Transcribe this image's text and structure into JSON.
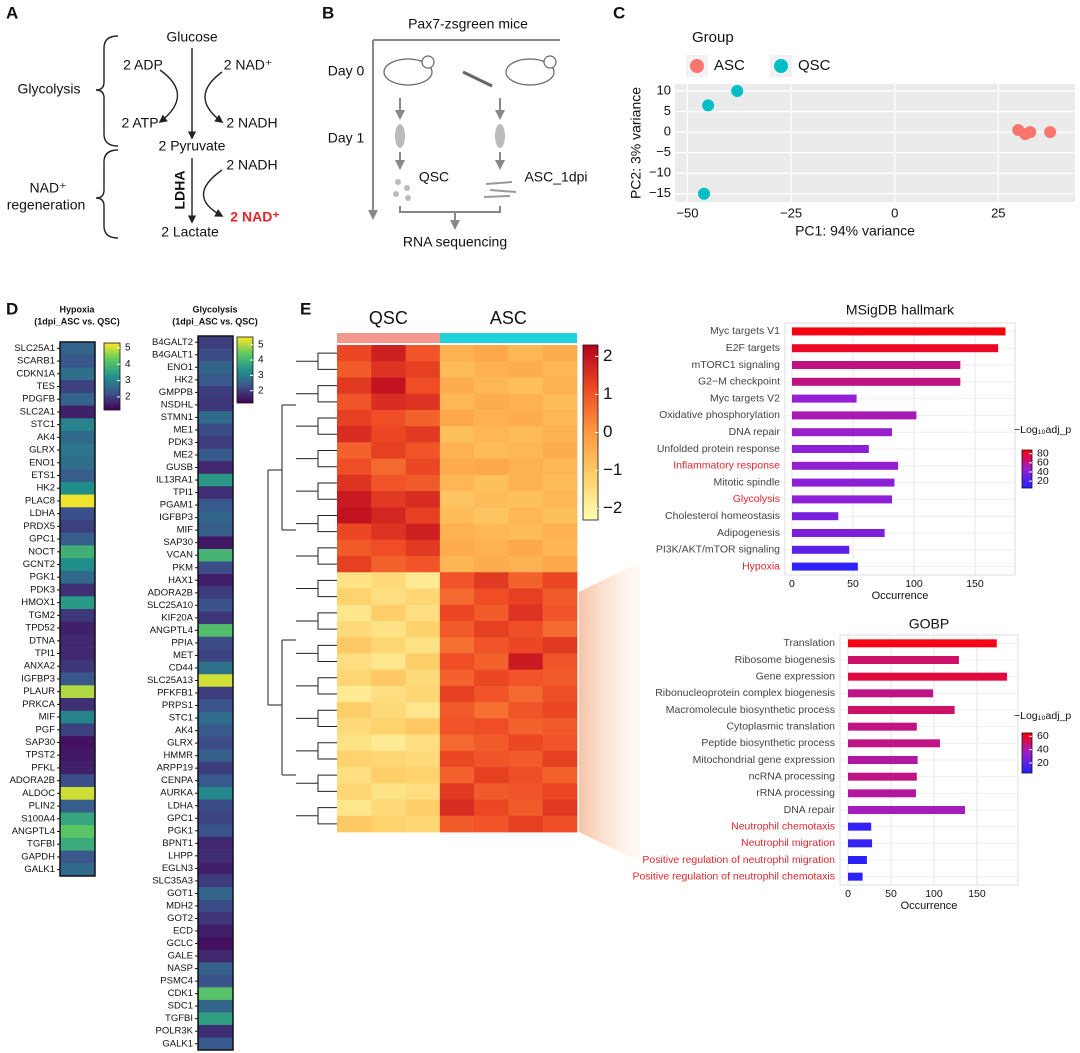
{
  "panel_labels": [
    "A",
    "B",
    "C",
    "D",
    "E"
  ],
  "panel_a": {
    "glucose": "Glucose",
    "adp": "2 ADP",
    "nad_in": "2 NAD⁺",
    "atp": "2 ATP",
    "nadh_out": "2 NADH",
    "pyruvate": "2 Pyruvate",
    "enzyme": "LDHA",
    "nadh_in": "2 NADH",
    "nad_out": "2 NAD⁺",
    "lactate": "2 Lactate",
    "glycolysis": "Glycolysis",
    "regeneration": [
      "NAD⁺",
      "regeneration"
    ]
  },
  "panel_b": {
    "title": "Pax7-zsgreen mice",
    "day0": "Day 0",
    "day1": "Day 1",
    "qsc": "QSC",
    "asc": "ASC_1dpi",
    "sequencing": "RNA sequencing"
  },
  "chart_data": [
    {
      "type": "scatter",
      "xlabel": "PC1: 94% variance",
      "ylabel": "PC2: 3% variance",
      "legend_title": "Group",
      "legend": "top",
      "series": [
        {
          "name": "ASC",
          "color": "#f8766d",
          "x": [
            29.8,
            31.5,
            32.7,
            37.5
          ],
          "y": [
            0.5,
            -0.5,
            0,
            0
          ]
        },
        {
          "name": "QSC",
          "color": "#00bfc4",
          "x": [
            -38,
            -45,
            -46
          ],
          "y": [
            10,
            6.5,
            -15
          ]
        }
      ],
      "xlim": [
        -53,
        43.5
      ],
      "ylim": [
        -17,
        11.7
      ],
      "xticks": [
        {
          "value": -50,
          "label": "−50"
        },
        {
          "value": -25,
          "label": "−25"
        },
        0,
        25
      ],
      "yticks": [
        10,
        5,
        0,
        {
          "value": -5,
          "label": "−5"
        },
        {
          "value": -10,
          "label": "−10"
        },
        {
          "value": -15,
          "label": "−15"
        }
      ],
      "grid": true
    },
    {
      "type": "heatmap",
      "title": "Hypoxia",
      "subtitle": "(1dpi_ASC vs. QSC)",
      "categories": [
        "SLC25A1",
        "SCARB1",
        "CDKN1A",
        "TES",
        "PDGFB",
        "SLC2A1",
        "STC1",
        "AK4",
        "GLRX",
        "ENO1",
        "ETS1",
        "HK2",
        "PLAC8",
        "LDHA",
        "PRDX5",
        "GPC1",
        "NOCT",
        "GCNT2",
        "PGK1",
        "PDK3",
        "HMOX1",
        "TGM2",
        "TPD52",
        "DTNA",
        "TPI1",
        "ANXA2",
        "IGFBP3",
        "PLAUR",
        "PRKCA",
        "MIF",
        "PGF",
        "SAP30",
        "TPST2",
        "PFKL",
        "ADORA2B",
        "ALDOC",
        "PLIN2",
        "S100A4",
        "ANGPTL4",
        "TGFBI",
        "GAPDH",
        "GALK1"
      ],
      "values": [
        2.5,
        2.3,
        2.7,
        2.0,
        2.5,
        1.6,
        3.0,
        2.6,
        2.8,
        2.7,
        2.4,
        3.2,
        5.2,
        2.2,
        2.0,
        2.4,
        3.8,
        3.2,
        2.6,
        1.8,
        3.4,
        1.9,
        1.6,
        1.7,
        1.7,
        1.9,
        2.3,
        4.8,
        1.8,
        3.0,
        2.0,
        1.4,
        1.5,
        1.6,
        2.2,
        5.0,
        2.4,
        3.6,
        4.2,
        3.7,
        2.3,
        2.6
      ],
      "colorbar": {
        "lim": [
          1.2,
          5.3
        ],
        "ticks": [
          2,
          3,
          4,
          5
        ],
        "colors": [
          "#440154",
          "#3b528b",
          "#21918c",
          "#5ec962",
          "#fde725"
        ]
      }
    },
    {
      "type": "heatmap",
      "title": "Glycolysis",
      "subtitle": "(1dpi_ASC vs. QSC)",
      "categories": [
        "B4GALT2",
        "B4GALT1",
        "ENO1",
        "HK2",
        "GMPPB",
        "NSDHL",
        "STMN1",
        "ME1",
        "PDK3",
        "ME2",
        "GUSB",
        "IL13RA1",
        "TPI1",
        "PGAM1",
        "IGFBP3",
        "MIF",
        "SAP30",
        "VCAN",
        "PKM",
        "HAX1",
        "ADORA2B",
        "SLC25A10",
        "KIF20A",
        "ANGPTL4",
        "PPIA",
        "MET",
        "CD44",
        "SLC25A13",
        "PFKFB1",
        "PRPS1",
        "STC1",
        "AK4",
        "GLRX",
        "HMMR",
        "ARPP19",
        "CENPA",
        "AURKA",
        "LDHA",
        "GPC1",
        "PGK1",
        "BPNT1",
        "LHPP",
        "EGLN3",
        "SLC35A3",
        "GOT1",
        "MDH2",
        "GOT2",
        "ECD",
        "GCLC",
        "GALE",
        "NASP",
        "PSMC4",
        "CDK1",
        "SDC1",
        "TGFBI",
        "POLR3K",
        "GALK1"
      ],
      "values": [
        2.0,
        2.2,
        2.6,
        2.4,
        2.0,
        1.9,
        2.7,
        2.2,
        2.0,
        2.4,
        1.7,
        3.5,
        1.8,
        2.4,
        2.6,
        2.5,
        1.5,
        4.0,
        2.2,
        1.6,
        2.0,
        2.3,
        1.9,
        4.2,
        2.2,
        2.1,
        2.8,
        5.2,
        2.0,
        2.3,
        2.7,
        2.4,
        2.2,
        2.5,
        2.0,
        2.4,
        3.2,
        2.2,
        2.1,
        2.3,
        1.7,
        1.8,
        1.6,
        2.0,
        2.6,
        2.2,
        1.9,
        1.6,
        1.4,
        1.7,
        2.5,
        2.3,
        4.3,
        2.6,
        3.6,
        1.8,
        2.4
      ],
      "colorbar": {
        "lim": [
          1.2,
          5.5
        ],
        "ticks": [
          2,
          3,
          4,
          5
        ],
        "colors": [
          "#440154",
          "#3b528b",
          "#21918c",
          "#5ec962",
          "#fde725"
        ]
      }
    },
    {
      "type": "heatmap",
      "series": [
        {
          "name": "QSC",
          "color": "#f4978e",
          "values": [
            [
              1.2,
              1.8,
              1.0
            ],
            [
              0.9,
              1.5,
              1.3
            ],
            [
              1.4,
              2.0,
              1.1
            ],
            [
              1.0,
              1.6,
              1.5
            ],
            [
              1.3,
              1.1,
              0.8
            ],
            [
              1.6,
              1.2,
              1.4
            ],
            [
              0.8,
              1.3,
              1.0
            ],
            [
              1.1,
              0.7,
              1.2
            ],
            [
              1.5,
              1.0,
              0.9
            ],
            [
              1.9,
              1.4,
              1.6
            ],
            [
              2.0,
              1.7,
              1.3
            ],
            [
              1.2,
              1.5,
              1.8
            ],
            [
              0.9,
              1.1,
              1.4
            ],
            [
              1.3,
              0.8,
              1.0
            ],
            [
              -1.6,
              -1.4,
              -1.8
            ],
            [
              -1.2,
              -1.5,
              -1.3
            ],
            [
              -1.7,
              -1.1,
              -1.5
            ],
            [
              -1.4,
              -1.6,
              -1.2
            ],
            [
              -1.0,
              -1.3,
              -1.6
            ],
            [
              -1.5,
              -1.7,
              -1.1
            ],
            [
              -1.3,
              -1.0,
              -1.4
            ],
            [
              -1.8,
              -1.5,
              -1.3
            ],
            [
              -1.1,
              -1.4,
              -1.7
            ],
            [
              -1.4,
              -1.2,
              -1.0
            ],
            [
              -1.6,
              -1.8,
              -1.5
            ],
            [
              -1.2,
              -1.3,
              -1.4
            ],
            [
              -1.5,
              -1.1,
              -1.2
            ],
            [
              -1.3,
              -1.6,
              -1.5
            ],
            [
              -1.7,
              -1.4,
              -1.1
            ],
            [
              -1.0,
              -1.2,
              -1.3
            ]
          ]
        },
        {
          "name": "ASC",
          "color": "#1fd3d8",
          "values": [
            [
              -0.5,
              -0.3,
              -0.6,
              -0.4
            ],
            [
              -0.7,
              -0.5,
              -0.4,
              -0.6
            ],
            [
              -0.4,
              -0.6,
              -0.8,
              -0.5
            ],
            [
              -0.6,
              -0.4,
              -0.5,
              -0.7
            ],
            [
              -0.3,
              -0.5,
              -0.4,
              -0.6
            ],
            [
              -0.8,
              -0.6,
              -0.7,
              -0.5
            ],
            [
              -0.5,
              -0.7,
              -0.6,
              -0.4
            ],
            [
              -0.4,
              -0.3,
              -0.5,
              -0.6
            ],
            [
              -0.6,
              -0.8,
              -0.5,
              -0.7
            ],
            [
              -0.9,
              -0.7,
              -0.8,
              -0.6
            ],
            [
              -0.7,
              -0.9,
              -0.6,
              -0.8
            ],
            [
              -0.5,
              -0.6,
              -0.7,
              -0.5
            ],
            [
              -0.4,
              -0.5,
              -0.3,
              -0.6
            ],
            [
              -0.6,
              -0.4,
              -0.5,
              -0.3
            ],
            [
              1.0,
              1.4,
              0.8,
              1.2
            ],
            [
              0.7,
              1.1,
              1.3,
              0.9
            ],
            [
              1.2,
              0.9,
              1.5,
              1.0
            ],
            [
              0.9,
              1.3,
              1.1,
              0.7
            ],
            [
              0.6,
              1.0,
              1.2,
              1.4
            ],
            [
              1.1,
              0.8,
              1.9,
              1.0
            ],
            [
              0.8,
              1.2,
              1.0,
              0.9
            ],
            [
              1.3,
              1.0,
              0.7,
              1.1
            ],
            [
              0.9,
              0.6,
              1.0,
              1.2
            ],
            [
              1.0,
              1.1,
              0.8,
              0.9
            ],
            [
              0.7,
              0.9,
              1.2,
              1.0
            ],
            [
              1.2,
              1.0,
              0.9,
              1.3
            ],
            [
              0.8,
              1.3,
              1.1,
              0.8
            ],
            [
              1.4,
              0.9,
              1.0,
              1.2
            ],
            [
              1.6,
              1.2,
              0.9,
              1.4
            ],
            [
              0.9,
              1.0,
              1.3,
              1.1
            ]
          ]
        }
      ],
      "colorbar": {
        "lim": [
          -2.3,
          2.3
        ],
        "ticks": [
          2,
          1,
          0,
          {
            "value": -1,
            "label": "−1"
          },
          {
            "value": -2,
            "label": "−2"
          }
        ],
        "colors": [
          "#ffffb2",
          "#fed06a",
          "#fd9a40",
          "#ee4a24",
          "#b4001e"
        ]
      }
    },
    {
      "type": "barh",
      "title": "MSigDB hallmark",
      "xlabel": "Occurrence",
      "categories": [
        "Myc targets V1",
        "E2F targets",
        "mTORC1 signaling",
        "G2−M checkpoint",
        "Myc targets V2",
        "Oxidative phosphorylation",
        "DNA repair",
        "Unfolded protein response",
        "Inflammatory response",
        "Mitotic spindle",
        "Glycolysis",
        "Cholesterol homeostasis",
        "Adipogenesis",
        "PI3K/AKT/mTOR  signaling",
        "Hypoxia"
      ],
      "values": [
        175,
        169,
        138,
        138,
        53,
        102,
        82,
        63,
        87,
        84,
        82,
        38,
        76,
        47,
        54
      ],
      "color_values": [
        85,
        80,
        62,
        62,
        45,
        52,
        47,
        42,
        44,
        42,
        42,
        35,
        36,
        25,
        10
      ],
      "label_colors": [
        "#444",
        "#444",
        "#444",
        "#444",
        "#444",
        "#444",
        "#444",
        "#444",
        "#e4262b",
        "#444",
        "#e4262b",
        "#444",
        "#444",
        "#444",
        "#e4262b"
      ],
      "xlim": [
        -5.7,
        182.8
      ],
      "xticks": [
        0,
        50,
        100,
        150
      ],
      "grid": true,
      "colorbar": {
        "title": "−Log₁₀adj_p",
        "lim": [
          5,
          88
        ],
        "ticks": [
          20,
          40,
          60,
          80
        ],
        "colors": [
          "#2222ff",
          "#9a1fcf",
          "#ff0000"
        ]
      }
    },
    {
      "type": "barh",
      "title": "GOBP",
      "xlabel": "Occurrence",
      "categories": [
        "Translation",
        "Ribosome biogenesis",
        "Gene expression",
        "Ribonucleoprotein complex biogenesis",
        "Macromolecule biosynthetic process",
        "Cytoplasmic translation",
        "Peptide biosynthetic process",
        "Mitochondrial gene expression",
        "ncRNA processing",
        "rRNA processing",
        "DNA repair",
        "Neutrophil chemotaxis",
        "Neutrophil migration",
        "Positive regulation of neutrophil migration",
        "Positive regulation of neutrophil chemotaxis"
      ],
      "values": [
        173,
        129,
        185,
        99,
        124,
        80,
        107,
        81,
        80,
        79,
        136,
        27,
        28,
        22,
        17
      ],
      "color_values": [
        62,
        50,
        56,
        46,
        50,
        46,
        46,
        42,
        46,
        42,
        38,
        9,
        9,
        7,
        7
      ],
      "label_colors": [
        "#444",
        "#444",
        "#444",
        "#444",
        "#444",
        "#444",
        "#444",
        "#444",
        "#444",
        "#444",
        "#444",
        "#e4262b",
        "#e4262b",
        "#e4262b",
        "#e4262b"
      ],
      "xlim": [
        -9.3,
        197.7
      ],
      "xticks": [
        0,
        50,
        100,
        150
      ],
      "grid": true,
      "colorbar": {
        "title": "−Log₁₀adj_p",
        "lim": [
          5,
          65
        ],
        "ticks": [
          20,
          40,
          60
        ],
        "colors": [
          "#2222ff",
          "#9a1fcf",
          "#ff0000"
        ]
      }
    }
  ]
}
